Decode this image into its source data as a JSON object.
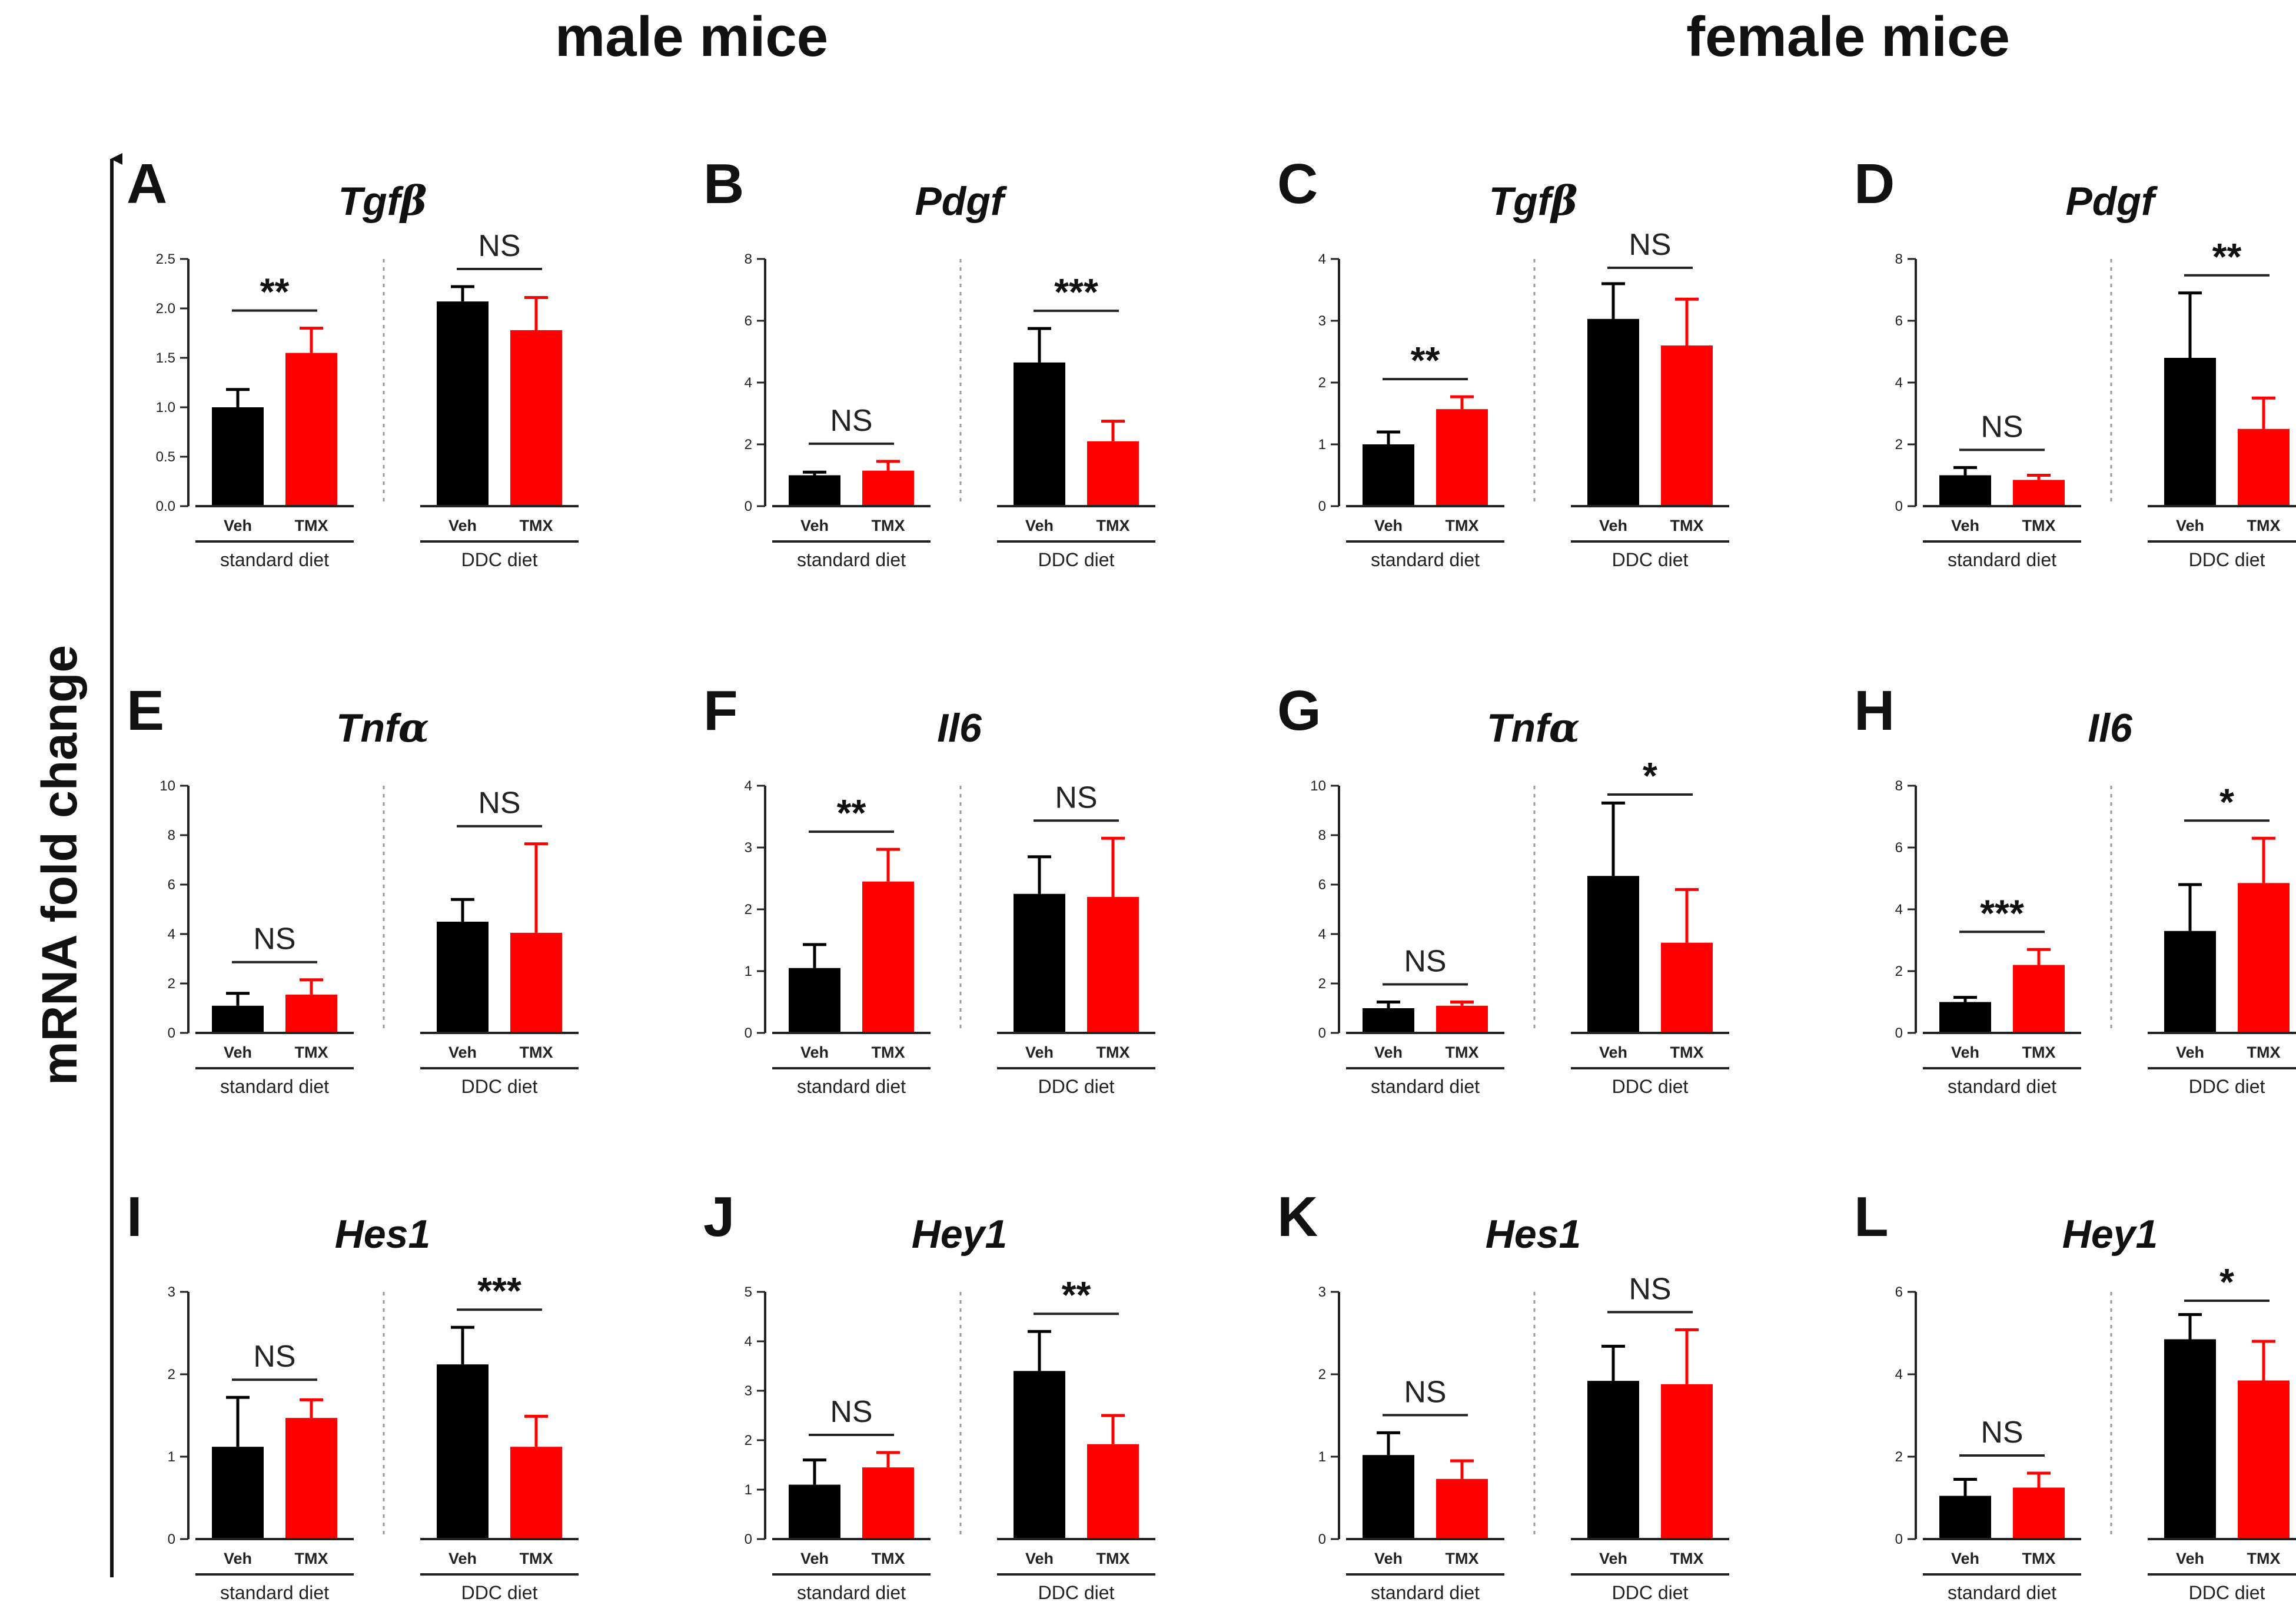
{
  "figure": {
    "group_titles": [
      "male mice",
      "female mice"
    ],
    "y_axis_title": "mRNA fold change",
    "categories": [
      "Veh",
      "TMX"
    ],
    "diet_groups": [
      "standard diet",
      "DDC diet"
    ],
    "colors": {
      "Veh": "#000000",
      "TMX": "#ff0000",
      "axis": "#222222",
      "divider": "#999999"
    }
  },
  "chart_data": [
    {
      "type": "bar",
      "panel": "A",
      "title": "Tgfβ",
      "title_main": "Tgf",
      "title_greek": "β",
      "sex": "male mice",
      "ylim": [
        0,
        2.5
      ],
      "ticks": [
        "0.0",
        "0.5",
        "1.0",
        "1.5",
        "2.0",
        "2.5"
      ],
      "series": [
        {
          "name": "standard diet",
          "values": [
            1.0,
            1.55
          ],
          "errors": [
            0.18,
            0.25
          ]
        },
        {
          "name": "DDC diet",
          "values": [
            2.07,
            1.78
          ],
          "errors": [
            0.15,
            0.33
          ]
        }
      ],
      "significance": [
        "**",
        "NS"
      ]
    },
    {
      "type": "bar",
      "panel": "B",
      "title": "Pdgf",
      "title_main": "Pdgf",
      "title_greek": "",
      "sex": "male mice",
      "ylim": [
        0,
        8
      ],
      "ticks": [
        "0",
        "2",
        "4",
        "6",
        "8"
      ],
      "series": [
        {
          "name": "standard diet",
          "values": [
            1.0,
            1.15
          ],
          "errors": [
            0.1,
            0.3
          ]
        },
        {
          "name": "DDC diet",
          "values": [
            4.65,
            2.1
          ],
          "errors": [
            1.1,
            0.65
          ]
        }
      ],
      "significance": [
        "NS",
        "***"
      ]
    },
    {
      "type": "bar",
      "panel": "C",
      "title": "Tgfβ",
      "title_main": "Tgf",
      "title_greek": "β",
      "sex": "female mice",
      "ylim": [
        0,
        4
      ],
      "ticks": [
        "0",
        "1",
        "2",
        "3",
        "4"
      ],
      "series": [
        {
          "name": "standard diet",
          "values": [
            1.0,
            1.57
          ],
          "errors": [
            0.2,
            0.2
          ]
        },
        {
          "name": "DDC diet",
          "values": [
            3.03,
            2.6
          ],
          "errors": [
            0.57,
            0.75
          ]
        }
      ],
      "significance": [
        "**",
        "NS"
      ]
    },
    {
      "type": "bar",
      "panel": "D",
      "title": "Pdgf",
      "title_main": "Pdgf",
      "title_greek": "",
      "sex": "female mice",
      "ylim": [
        0,
        8
      ],
      "ticks": [
        "0",
        "2",
        "4",
        "6",
        "8"
      ],
      "series": [
        {
          "name": "standard diet",
          "values": [
            1.0,
            0.85
          ],
          "errors": [
            0.25,
            0.15
          ]
        },
        {
          "name": "DDC diet",
          "values": [
            4.8,
            2.5
          ],
          "errors": [
            2.1,
            1.0
          ]
        }
      ],
      "significance": [
        "NS",
        "**"
      ]
    },
    {
      "type": "bar",
      "panel": "E",
      "title": "Tnfα",
      "title_main": "Tnf",
      "title_greek": "α",
      "sex": "male mice",
      "ylim": [
        0,
        10
      ],
      "ticks": [
        "0",
        "2",
        "4",
        "6",
        "8",
        "10"
      ],
      "series": [
        {
          "name": "standard diet",
          "values": [
            1.1,
            1.55
          ],
          "errors": [
            0.5,
            0.6
          ]
        },
        {
          "name": "DDC diet",
          "values": [
            4.5,
            4.05
          ],
          "errors": [
            0.9,
            3.6
          ]
        }
      ],
      "significance": [
        "NS",
        "NS"
      ]
    },
    {
      "type": "bar",
      "panel": "F",
      "title": "Il6",
      "title_main": "Il6",
      "title_greek": "",
      "sex": "male mice",
      "ylim": [
        0,
        4
      ],
      "ticks": [
        "0",
        "1",
        "2",
        "3",
        "4"
      ],
      "series": [
        {
          "name": "standard diet",
          "values": [
            1.05,
            2.45
          ],
          "errors": [
            0.38,
            0.52
          ]
        },
        {
          "name": "DDC diet",
          "values": [
            2.25,
            2.2
          ],
          "errors": [
            0.6,
            0.95
          ]
        }
      ],
      "significance": [
        "**",
        "NS"
      ]
    },
    {
      "type": "bar",
      "panel": "G",
      "title": "Tnfα",
      "title_main": "Tnf",
      "title_greek": "α",
      "sex": "female mice",
      "ylim": [
        0,
        10
      ],
      "ticks": [
        "0",
        "2",
        "4",
        "6",
        "8",
        "10"
      ],
      "series": [
        {
          "name": "standard diet",
          "values": [
            1.0,
            1.1
          ],
          "errors": [
            0.25,
            0.15
          ]
        },
        {
          "name": "DDC diet",
          "values": [
            6.35,
            3.65
          ],
          "errors": [
            2.95,
            2.15
          ]
        }
      ],
      "significance": [
        "NS",
        "*"
      ]
    },
    {
      "type": "bar",
      "panel": "H",
      "title": "Il6",
      "title_main": "Il6",
      "title_greek": "",
      "sex": "female mice",
      "ylim": [
        0,
        8
      ],
      "ticks": [
        "0",
        "2",
        "4",
        "6",
        "8"
      ],
      "series": [
        {
          "name": "standard diet",
          "values": [
            1.0,
            2.2
          ],
          "errors": [
            0.15,
            0.5
          ]
        },
        {
          "name": "DDC diet",
          "values": [
            3.3,
            4.85
          ],
          "errors": [
            1.5,
            1.45
          ]
        }
      ],
      "significance": [
        "***",
        "*"
      ]
    },
    {
      "type": "bar",
      "panel": "I",
      "title": "Hes1",
      "title_main": "Hes1",
      "title_greek": "",
      "sex": "male mice",
      "ylim": [
        0,
        3
      ],
      "ticks": [
        "0",
        "1",
        "2",
        "3"
      ],
      "series": [
        {
          "name": "standard diet",
          "values": [
            1.12,
            1.47
          ],
          "errors": [
            0.6,
            0.22
          ]
        },
        {
          "name": "DDC diet",
          "values": [
            2.12,
            1.12
          ],
          "errors": [
            0.45,
            0.37
          ]
        }
      ],
      "significance": [
        "NS",
        "***"
      ]
    },
    {
      "type": "bar",
      "panel": "J",
      "title": "Hey1",
      "title_main": "Hey1",
      "title_greek": "",
      "sex": "male mice",
      "ylim": [
        0,
        5
      ],
      "ticks": [
        "0",
        "1",
        "2",
        "3",
        "4",
        "5"
      ],
      "series": [
        {
          "name": "standard diet",
          "values": [
            1.1,
            1.45
          ],
          "errors": [
            0.5,
            0.3
          ]
        },
        {
          "name": "DDC diet",
          "values": [
            3.4,
            1.92
          ],
          "errors": [
            0.8,
            0.58
          ]
        }
      ],
      "significance": [
        "NS",
        "**"
      ]
    },
    {
      "type": "bar",
      "panel": "K",
      "title": "Hes1",
      "title_main": "Hes1",
      "title_greek": "",
      "sex": "female mice",
      "ylim": [
        0,
        3
      ],
      "ticks": [
        "0",
        "1",
        "2",
        "3"
      ],
      "series": [
        {
          "name": "standard diet",
          "values": [
            1.02,
            0.73
          ],
          "errors": [
            0.27,
            0.22
          ]
        },
        {
          "name": "DDC diet",
          "values": [
            1.92,
            1.88
          ],
          "errors": [
            0.42,
            0.66
          ]
        }
      ],
      "significance": [
        "NS",
        "NS"
      ]
    },
    {
      "type": "bar",
      "panel": "L",
      "title": "Hey1",
      "title_main": "Hey1",
      "title_greek": "",
      "sex": "female mice",
      "ylim": [
        0,
        6
      ],
      "ticks": [
        "0",
        "2",
        "4",
        "6"
      ],
      "series": [
        {
          "name": "standard diet",
          "values": [
            1.05,
            1.25
          ],
          "errors": [
            0.4,
            0.35
          ]
        },
        {
          "name": "DDC diet",
          "values": [
            4.85,
            3.85
          ],
          "errors": [
            0.6,
            0.95
          ]
        }
      ],
      "significance": [
        "NS",
        "*"
      ]
    }
  ]
}
